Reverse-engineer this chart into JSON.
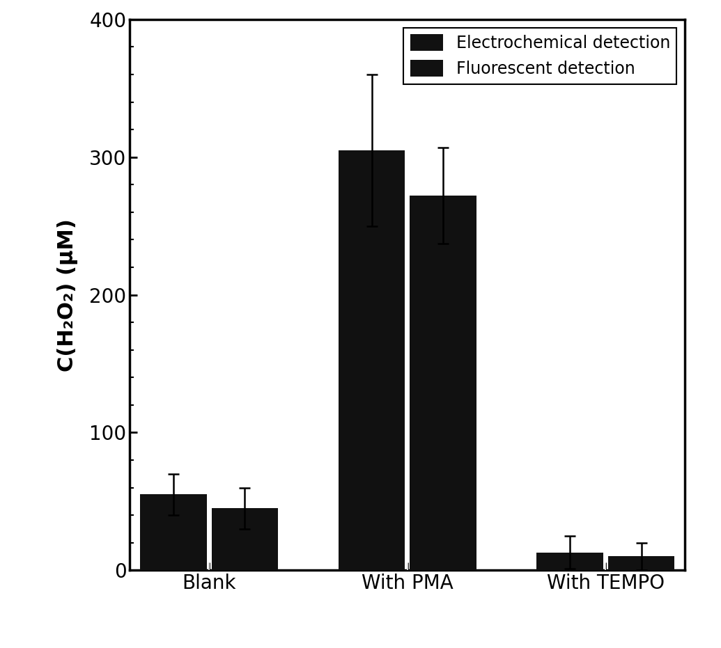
{
  "categories": [
    "Blank",
    "With PMA",
    "With TEMPO"
  ],
  "electrochemical_values": [
    55,
    305,
    13
  ],
  "fluorescent_values": [
    45,
    272,
    10
  ],
  "electrochemical_errors": [
    15,
    55,
    12
  ],
  "fluorescent_errors": [
    15,
    35,
    10
  ],
  "bar_color": "#111111",
  "bar_width": 0.42,
  "group_positions": [
    0.5,
    1.75,
    3.0
  ],
  "ylabel": "C(H₂O₂) (μM)",
  "ylim": [
    0,
    400
  ],
  "yticks": [
    0,
    100,
    200,
    300,
    400
  ],
  "legend_labels": [
    "Electrochemical detection",
    "Fluorescent detection"
  ],
  "legend_loc": "upper right",
  "ylabel_fontsize": 22,
  "tick_fontsize": 20,
  "legend_fontsize": 17,
  "xtick_fontsize": 20,
  "background_color": "#ffffff",
  "figure_width": 10.35,
  "figure_height": 9.31,
  "dpi": 100,
  "spine_linewidth": 2.5
}
